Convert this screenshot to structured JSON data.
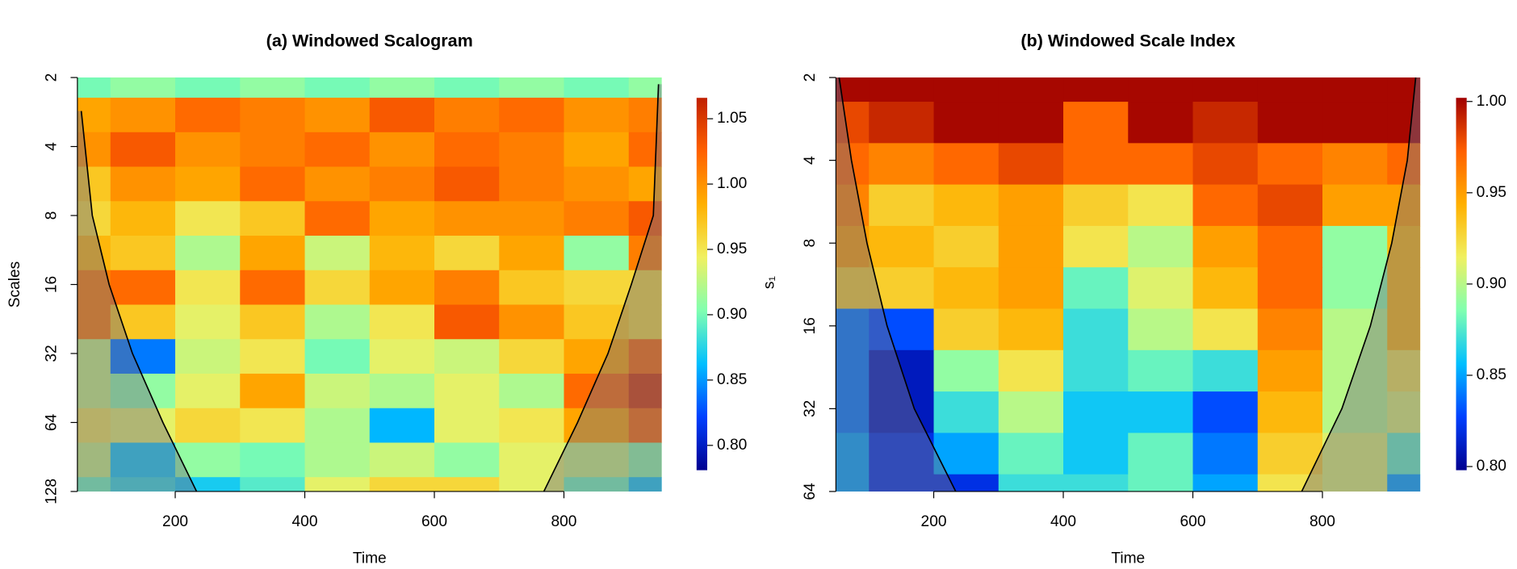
{
  "chart_data": [
    {
      "type": "heatmap",
      "title": "(a) Windowed Scalogram",
      "x_label": "Time",
      "y_label": "Scales",
      "colorbar_label": "s₁",
      "x": [
        50,
        150,
        250,
        350,
        450,
        550,
        650,
        750,
        850,
        950
      ],
      "y": [
        2,
        3,
        4,
        6,
        8,
        12,
        16,
        24,
        32,
        48,
        64,
        96,
        128
      ],
      "z": [
        [
          0.9,
          0.91,
          0.9,
          0.91,
          0.9,
          0.91,
          0.9,
          0.91,
          0.9,
          0.91
        ],
        [
          0.99,
          1.0,
          1.02,
          1.01,
          1.0,
          1.03,
          1.01,
          1.02,
          1.0,
          1.01
        ],
        [
          1.0,
          1.03,
          1.0,
          1.01,
          1.02,
          1.0,
          1.02,
          1.01,
          0.99,
          1.02
        ],
        [
          0.97,
          1.0,
          0.99,
          1.02,
          1.0,
          1.01,
          1.03,
          1.01,
          1.0,
          0.99
        ],
        [
          0.96,
          0.98,
          0.95,
          0.97,
          1.02,
          0.99,
          1.0,
          1.0,
          1.01,
          1.03
        ],
        [
          0.98,
          0.97,
          0.92,
          0.99,
          0.93,
          0.98,
          0.96,
          0.99,
          0.91,
          1.01
        ],
        [
          1.01,
          1.02,
          0.95,
          1.02,
          0.96,
          0.99,
          1.01,
          0.97,
          0.96,
          0.96
        ],
        [
          1.01,
          0.97,
          0.94,
          0.97,
          0.92,
          0.95,
          1.03,
          1.0,
          0.97,
          0.96
        ],
        [
          0.93,
          0.84,
          0.93,
          0.95,
          0.9,
          0.94,
          0.93,
          0.96,
          0.99,
          1.02
        ],
        [
          0.93,
          0.91,
          0.94,
          0.99,
          0.93,
          0.92,
          0.94,
          0.92,
          1.02,
          1.05
        ],
        [
          0.95,
          0.94,
          0.96,
          0.95,
          0.92,
          0.86,
          0.94,
          0.95,
          0.99,
          1.02
        ],
        [
          0.93,
          0.87,
          0.91,
          0.9,
          0.92,
          0.93,
          0.91,
          0.94,
          0.93,
          0.91
        ],
        [
          0.9,
          0.88,
          0.87,
          0.89,
          0.94,
          0.96,
          0.96,
          0.94,
          0.9,
          0.87
        ]
      ],
      "xlim": [
        49,
        951
      ],
      "xticks": [
        200,
        400,
        600,
        800
      ],
      "ylim": [
        2,
        128
      ],
      "yticks": [
        2,
        4,
        8,
        16,
        32,
        64,
        128
      ],
      "log_y": true,
      "y_reversed": true,
      "zlim": [
        0.781,
        1.066
      ],
      "zticks": [
        {
          "value": 0.8,
          "label": "0.80"
        },
        0.85,
        {
          "value": 0.9,
          "label": "0.90"
        },
        0.95,
        {
          "value": 1.0,
          "label": "1.00"
        },
        1.05
      ],
      "colormap": [
        "#00008f",
        "#0040ff",
        "#00bfff",
        "#80ffb0",
        "#f0f060",
        "#ffb000",
        "#ff6000",
        "#c02000"
      ],
      "coi": {
        "x": [
          55,
          72,
          98,
          134,
          181,
          233,
          null,
          769,
          821,
          868,
          904,
          938,
          946
        ],
        "y": [
          2.8,
          8,
          16,
          32,
          64,
          128,
          null,
          128,
          64,
          32,
          16,
          8,
          2.14
        ]
      }
    },
    {
      "type": "heatmap",
      "title": "(b) Windowed Scale Index",
      "x_label": "Time",
      "x": [
        50,
        150,
        250,
        350,
        450,
        550,
        650,
        750,
        850,
        950
      ],
      "y": [
        2,
        3,
        4,
        6,
        8,
        12,
        16,
        24,
        32,
        48,
        64
      ],
      "z": [
        [
          1.0,
          1.0,
          1.0,
          1.0,
          1.0,
          1.0,
          1.0,
          1.0,
          1.0,
          1.0
        ],
        [
          0.98,
          0.99,
          1.0,
          1.0,
          0.97,
          1.0,
          0.99,
          1.0,
          1.0,
          1.0
        ],
        [
          0.97,
          0.96,
          0.97,
          0.98,
          0.97,
          0.97,
          0.98,
          0.97,
          0.96,
          0.97
        ],
        [
          0.96,
          0.93,
          0.94,
          0.95,
          0.93,
          0.92,
          0.97,
          0.98,
          0.95,
          0.95
        ],
        [
          0.95,
          0.94,
          0.93,
          0.95,
          0.92,
          0.9,
          0.95,
          0.97,
          0.89,
          0.94
        ],
        [
          0.93,
          0.93,
          0.94,
          0.95,
          0.88,
          0.91,
          0.94,
          0.97,
          0.89,
          0.94
        ],
        [
          0.84,
          0.83,
          0.93,
          0.94,
          0.87,
          0.9,
          0.92,
          0.96,
          0.9,
          0.94
        ],
        [
          0.84,
          0.81,
          0.89,
          0.92,
          0.87,
          0.88,
          0.87,
          0.95,
          0.9,
          0.92
        ],
        [
          0.84,
          0.81,
          0.87,
          0.9,
          0.86,
          0.86,
          0.83,
          0.94,
          0.9,
          0.91
        ],
        [
          0.85,
          0.82,
          0.85,
          0.88,
          0.86,
          0.88,
          0.84,
          0.93,
          0.91,
          0.88
        ],
        [
          0.85,
          0.82,
          0.82,
          0.87,
          0.87,
          0.88,
          0.85,
          0.92,
          0.91,
          0.85
        ]
      ],
      "xlim": [
        49,
        951
      ],
      "xticks": [
        200,
        400,
        600,
        800
      ],
      "ylim": [
        2,
        64
      ],
      "yticks": [
        2,
        4,
        8,
        16,
        32,
        64
      ],
      "log_y": true,
      "y_reversed": true,
      "zlim": [
        0.798,
        1.002
      ],
      "zticks": [
        {
          "value": 0.8,
          "label": "0.80"
        },
        0.85,
        {
          "value": 0.9,
          "label": "0.90"
        },
        0.95,
        {
          "value": 1.0,
          "label": "1.00"
        }
      ],
      "colormap": [
        "#00008f",
        "#0040ff",
        "#00bfff",
        "#80ffb0",
        "#f0f060",
        "#ffb000",
        "#ff6000",
        "#a00000"
      ],
      "coi": {
        "x": [
          54,
          73,
          97,
          128,
          170,
          234,
          null,
          768,
          830,
          874,
          907,
          931,
          944
        ],
        "y": [
          2,
          4,
          8,
          16,
          32,
          64,
          null,
          64,
          32,
          16,
          8,
          4,
          2
        ]
      }
    }
  ]
}
